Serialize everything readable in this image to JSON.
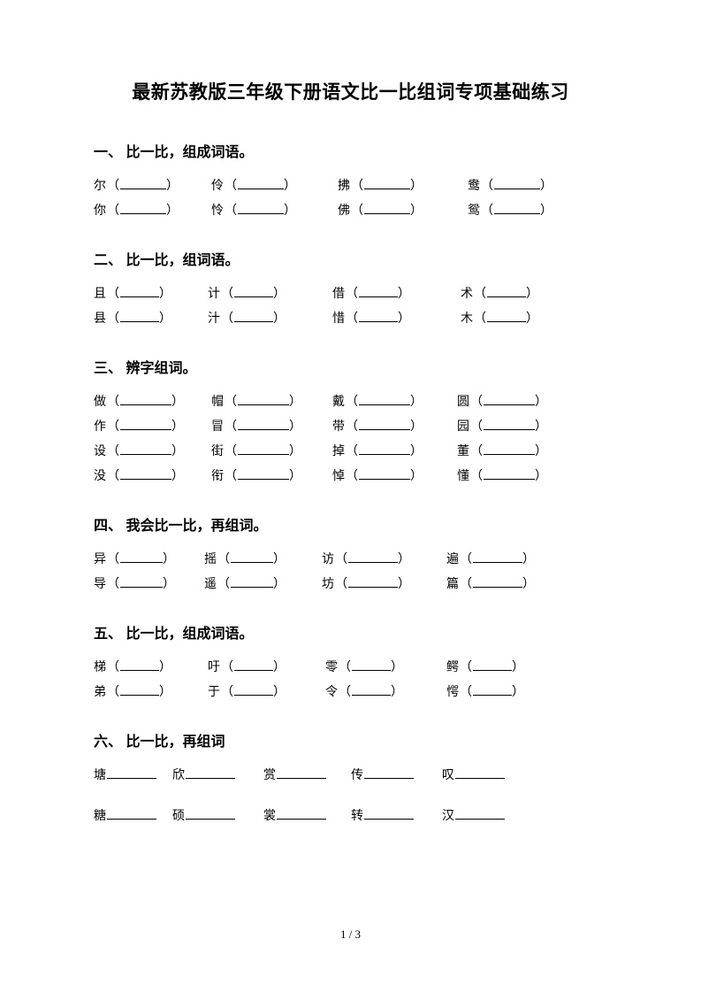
{
  "title": "最新苏教版三年级下册语文比一比组词专项基础练习",
  "footer": "1 / 3",
  "blankWidths": {
    "w52": 52,
    "w44": 44,
    "w58": 58,
    "w60": 60,
    "w46": 46,
    "w48": 48,
    "w56": 56
  },
  "sections": [
    {
      "heading": "一、 比一比，组成词语。",
      "rows": [
        [
          {
            "char": "尔",
            "pre": "（",
            "post": "）",
            "blank": "w52",
            "padAfter": 36
          },
          {
            "char": "伶",
            "pre": "（",
            "post": "）",
            "blank": "w52",
            "padAfter": 46
          },
          {
            "char": "拂",
            "pre": "（",
            "post": "）",
            "blank": "w52",
            "padAfter": 50
          },
          {
            "char": "鸯",
            "pre": "（",
            "post": "）",
            "blank": "w52",
            "padAfter": 0
          }
        ],
        [
          {
            "char": "你",
            "pre": "（",
            "post": "）",
            "blank": "w52",
            "padAfter": 36
          },
          {
            "char": "怜",
            "pre": "（",
            "post": "）",
            "blank": "w52",
            "padAfter": 46
          },
          {
            "char": "佛",
            "pre": "（",
            "post": "）",
            "blank": "w52",
            "padAfter": 50
          },
          {
            "char": "鸳",
            "pre": "（",
            "post": "）",
            "blank": "w52",
            "padAfter": 0
          }
        ]
      ]
    },
    {
      "heading": "二、 比一比，组词语。",
      "rows": [
        [
          {
            "char": "且",
            "pre": "（",
            "post": "）",
            "blank": "w44",
            "padAfter": 40
          },
          {
            "char": "计",
            "pre": "（",
            "post": "）",
            "blank": "w44",
            "padAfter": 52
          },
          {
            "char": "借",
            "pre": "（",
            "post": "）",
            "blank": "w44",
            "padAfter": 56
          },
          {
            "char": "术",
            "pre": "（",
            "post": "）",
            "blank": "w44",
            "padAfter": 0
          }
        ],
        [
          {
            "char": "县",
            "pre": "（",
            "post": "）",
            "blank": "w44",
            "padAfter": 40
          },
          {
            "char": "汁",
            "pre": "（",
            "post": "）",
            "blank": "w44",
            "padAfter": 52
          },
          {
            "char": "惜",
            "pre": "（",
            "post": "）",
            "blank": "w44",
            "padAfter": 56
          },
          {
            "char": "木",
            "pre": "（",
            "post": "）",
            "blank": "w44",
            "padAfter": 0
          }
        ]
      ]
    },
    {
      "heading": "三、 辨字组词。",
      "rows": [
        [
          {
            "char": "做",
            "pre": "（",
            "post": "）",
            "blank": "w58",
            "padAfter": 30
          },
          {
            "char": "帽",
            "pre": "（",
            "post": "）",
            "blank": "w58",
            "padAfter": 34
          },
          {
            "char": "戴",
            "pre": "（",
            "post": "）",
            "blank": "w58",
            "padAfter": 38
          },
          {
            "char": "圆",
            "pre": "（",
            "post": "）",
            "blank": "w58",
            "padAfter": 0
          }
        ],
        [
          {
            "char": "作",
            "pre": "（",
            "post": "）",
            "blank": "w58",
            "padAfter": 30
          },
          {
            "char": "冒",
            "pre": "（",
            "post": "）",
            "blank": "w58",
            "padAfter": 34
          },
          {
            "char": "带",
            "pre": "（",
            "post": "）",
            "blank": "w58",
            "padAfter": 38
          },
          {
            "char": "园",
            "pre": "（",
            "post": "）",
            "blank": "w58",
            "padAfter": 0
          }
        ],
        [
          {
            "char": "设",
            "pre": "（",
            "post": "）",
            "blank": "w58",
            "padAfter": 30
          },
          {
            "char": "街",
            "pre": "（",
            "post": "）",
            "blank": "w58",
            "padAfter": 34
          },
          {
            "char": "掉",
            "pre": "（",
            "post": "）",
            "blank": "w58",
            "padAfter": 38
          },
          {
            "char": "董",
            "pre": "（",
            "post": "）",
            "blank": "w58",
            "padAfter": 0
          }
        ],
        [
          {
            "char": "没",
            "pre": "（",
            "post": "）",
            "blank": "w58",
            "padAfter": 30
          },
          {
            "char": "衔",
            "pre": "（",
            "post": "）",
            "blank": "w58",
            "padAfter": 34
          },
          {
            "char": "悼",
            "pre": "（",
            "post": "）",
            "blank": "w58",
            "padAfter": 38
          },
          {
            "char": "懂",
            "pre": "（",
            "post": "）",
            "blank": "w58",
            "padAfter": 0
          }
        ]
      ]
    },
    {
      "heading": "四、 我会比一比，再组词。",
      "rows": [
        [
          {
            "char": "异",
            "pre": "（",
            "post": "）",
            "blank": "w48",
            "padAfter": 32
          },
          {
            "char": "摇",
            "pre": "（",
            "post": "）",
            "blank": "w48",
            "padAfter": 40
          },
          {
            "char": "访",
            "pre": "（",
            "post": "）",
            "blank": "w56",
            "padAfter": 40
          },
          {
            "char": "遍",
            "pre": "（",
            "post": "）",
            "blank": "w56",
            "padAfter": 0
          }
        ],
        [
          {
            "char": "导",
            "pre": "（",
            "post": "）",
            "blank": "w48",
            "padAfter": 32
          },
          {
            "char": "遥",
            "pre": "（",
            "post": "）",
            "blank": "w48",
            "padAfter": 40
          },
          {
            "char": "坊",
            "pre": "（",
            "post": "）",
            "blank": "w56",
            "padAfter": 40
          },
          {
            "char": "篇",
            "pre": "（",
            "post": "）",
            "blank": "w56",
            "padAfter": 0
          }
        ]
      ]
    },
    {
      "heading": "五、 比一比，组成词语。",
      "rows": [
        [
          {
            "char": "梯",
            "pre": "（",
            "post": "）",
            "blank": "w44",
            "padAfter": 40
          },
          {
            "char": "吁",
            "pre": "（",
            "post": "）",
            "blank": "w44",
            "padAfter": 44
          },
          {
            "char": "零",
            "pre": "（",
            "post": "）",
            "blank": "w44",
            "padAfter": 48
          },
          {
            "char": "鳄",
            "pre": "（",
            "post": "）",
            "blank": "w44",
            "padAfter": 0
          }
        ],
        [
          {
            "char": "弟",
            "pre": "（",
            "post": "）",
            "blank": "w44",
            "padAfter": 40
          },
          {
            "char": "于",
            "pre": "（",
            "post": "）",
            "blank": "w44",
            "padAfter": 44
          },
          {
            "char": "令",
            "pre": "（",
            "post": "）",
            "blank": "w44",
            "padAfter": 48
          },
          {
            "char": "愕",
            "pre": "（",
            "post": "）",
            "blank": "w44",
            "padAfter": 0
          }
        ]
      ]
    },
    {
      "heading": "六、 比一比，再组词",
      "lineGap": 18,
      "rows": [
        [
          {
            "char": "塘",
            "pre": "",
            "post": "",
            "blank": "w56",
            "padAfter": 18
          },
          {
            "char": "欣",
            "pre": "",
            "post": "",
            "blank": "w56",
            "padAfter": 32
          },
          {
            "char": "赏",
            "pre": "",
            "post": "",
            "blank": "w56",
            "padAfter": 28
          },
          {
            "char": "传",
            "pre": "",
            "post": "",
            "blank": "w56",
            "padAfter": 32
          },
          {
            "char": "叹",
            "pre": "",
            "post": "",
            "blank": "w56",
            "padAfter": 0
          }
        ],
        [
          {
            "char": "糖",
            "pre": "",
            "post": "",
            "blank": "w56",
            "padAfter": 18
          },
          {
            "char": "硕",
            "pre": "",
            "post": "",
            "blank": "w56",
            "padAfter": 32
          },
          {
            "char": "裳",
            "pre": "",
            "post": "",
            "blank": "w56",
            "padAfter": 28
          },
          {
            "char": "转",
            "pre": "",
            "post": "",
            "blank": "w56",
            "padAfter": 32
          },
          {
            "char": "汉",
            "pre": "",
            "post": "",
            "blank": "w56",
            "padAfter": 0
          }
        ]
      ]
    }
  ]
}
